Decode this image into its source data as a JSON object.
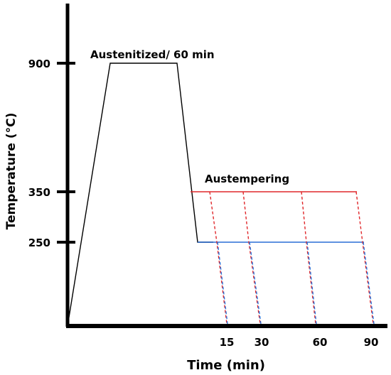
{
  "chart_data": {
    "type": "line",
    "title": "",
    "xlabel": "Time (min)",
    "ylabel": "Temperature (°C)",
    "y_ticks": [
      "900",
      "350",
      "250"
    ],
    "x_ticks": [
      "15",
      "30",
      "60",
      "90"
    ],
    "annotations": {
      "austenitize": "Austenitized/ 60 min",
      "austemper": "Austempering"
    },
    "colors": {
      "axis": "#000000",
      "profile": "#000000",
      "austemper_350": "#e0282c",
      "austemper_250": "#2a6fd6"
    },
    "series": [
      {
        "name": "",
        "temperatures": [
          0,
          900,
          900,
          250,
          250
        ]
      },
      {
        "name": "",
        "temperatures": [
          350,
          350
        ]
      }
    ],
    "quench_end_ticks": [
      "15",
      "30",
      "60",
      "90"
    ],
    "grid": false,
    "legend": "none"
  }
}
